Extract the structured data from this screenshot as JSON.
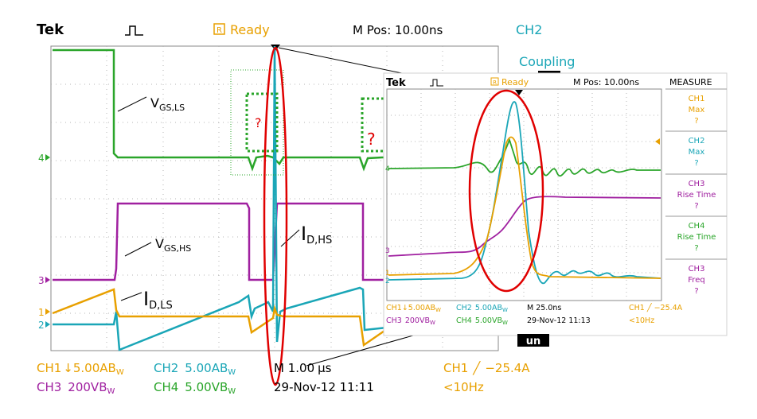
{
  "main": {
    "brand": "Tek",
    "status": "Ready",
    "status_glyph": "R",
    "mpos": "M Pos: 10.00ns",
    "right_panel": {
      "title": "CH2",
      "item": "Coupling"
    },
    "markers": {
      "ch4": "4",
      "ch3": "3",
      "ch1": "1",
      "ch2": "2"
    },
    "readouts": {
      "ch1": "CH1",
      "ch1_val": "5.00AB",
      "ch1_suffix": "W",
      "ch2": "CH2",
      "ch2_val": "5.00AB",
      "ch2_suffix": "W",
      "ch3": "CH3",
      "ch3_val": "200VB",
      "ch3_suffix": "W",
      "ch4": "CH4",
      "ch4_val": "5.00VB",
      "ch4_suffix": "W",
      "timebase": "M 1.00",
      "timebase_unit": "μs",
      "date": "29-Nov-12 11:11",
      "trigger": "CH1",
      "trigger_val": "−25.4A",
      "freq": "<10Hz"
    },
    "question_marks": [
      "?",
      "?"
    ]
  },
  "inset": {
    "brand": "Tek",
    "status": "Ready",
    "status_glyph": "R",
    "mpos": "M Pos: 10.00ns",
    "measure_title": "MEASURE",
    "measure": [
      {
        "ch": "CH1",
        "label": "Max",
        "value": "?",
        "color": "#e8a000"
      },
      {
        "ch": "CH2",
        "label": "Max",
        "value": "?",
        "color": "#1aa6b7"
      },
      {
        "ch": "CH3",
        "label": "Rise Time",
        "value": "?",
        "color": "#a020a0"
      },
      {
        "ch": "CH4",
        "label": "Rise Time",
        "value": "?",
        "color": "#2aa52a"
      },
      {
        "ch": "CH3",
        "label": "Freq",
        "value": "?",
        "color": "#a020a0"
      }
    ],
    "markers": {
      "ch4": "4",
      "ch3": "3",
      "ch1": "1",
      "ch2": "2"
    },
    "readouts": {
      "l1": "CH1",
      "l1_val": "5.00AB",
      "l1_suffix": "W",
      "l2": "CH2",
      "l2_val": "5.00AB",
      "l2_suffix": "W",
      "l3": "CH3",
      "l3_val": "200VB",
      "l3_suffix": "W",
      "l4": "CH4",
      "l4_val": "5.00VB",
      "l4_suffix": "W",
      "timebase": "M 25.0ns",
      "date": "29-Nov-12 11:13",
      "trigger": "CH1",
      "trigger_val": "−25.4A",
      "freq": "<10Hz"
    }
  },
  "labels": {
    "vgs_ls_main": "V",
    "vgs_ls_sub": "GS,LS",
    "vgs_hs_main": "V",
    "vgs_hs_sub": "GS,HS",
    "id_hs_main": "I",
    "id_hs_sub": "D,HS",
    "id_ls_main": "I",
    "id_ls_sub": "D,LS",
    "glyph_fragment": "un"
  },
  "colors": {
    "ch1": "#e8a000",
    "ch2": "#1aa6b7",
    "ch3": "#a020a0",
    "ch4": "#2aa52a",
    "status": "#e8a000",
    "header_cyan": "#1aa6b7",
    "annotation_red": "#e00000",
    "grid": "#b0b0b0"
  },
  "icons": [
    "acquisition-pulse-icon",
    "trigger-arrow-icon",
    "trigger-level-icon"
  ]
}
